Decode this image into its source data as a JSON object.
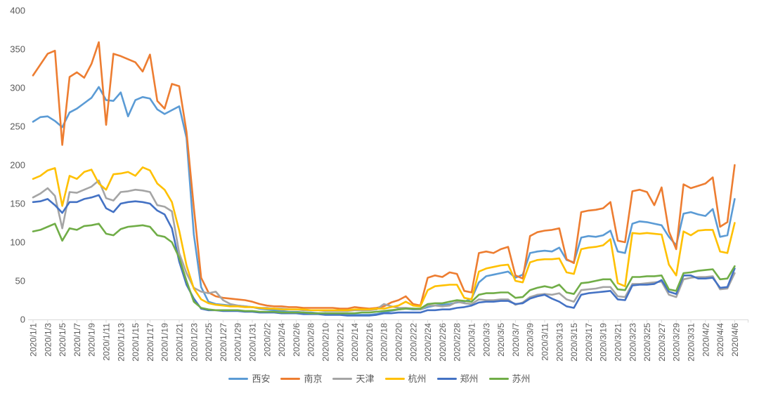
{
  "chart_data": {
    "type": "line",
    "title": "",
    "ylim": [
      0,
      400
    ],
    "y_ticks": [
      0,
      50,
      100,
      150,
      200,
      250,
      300,
      350,
      400
    ],
    "x_label_every": 2,
    "grid": false,
    "legend_position": "bottom",
    "dates": [
      "2020/1/1",
      "2020/1/2",
      "2020/1/3",
      "2020/1/4",
      "2020/1/5",
      "2020/1/6",
      "2020/1/7",
      "2020/1/8",
      "2020/1/9",
      "2020/1/10",
      "2020/1/11",
      "2020/1/12",
      "2020/1/13",
      "2020/1/14",
      "2020/1/15",
      "2020/1/16",
      "2020/1/17",
      "2020/1/18",
      "2020/1/19",
      "2020/1/20",
      "2020/1/21",
      "2020/1/22",
      "2020/1/23",
      "2020/1/24",
      "2020/1/25",
      "2020/1/26",
      "2020/1/27",
      "2020/1/28",
      "2020/1/29",
      "2020/1/30",
      "2020/1/31",
      "2020/2/1",
      "2020/2/2",
      "2020/2/3",
      "2020/2/4",
      "2020/2/5",
      "2020/2/6",
      "2020/2/7",
      "2020/2/8",
      "2020/2/9",
      "2020/2/10",
      "2020/2/11",
      "2020/2/12",
      "2020/2/13",
      "2020/2/14",
      "2020/2/15",
      "2020/2/16",
      "2020/2/17",
      "2020/2/18",
      "2020/2/19",
      "2020/2/20",
      "2020/2/21",
      "2020/2/22",
      "2020/2/23",
      "2020/2/24",
      "2020/2/25",
      "2020/2/26",
      "2020/2/27",
      "2020/2/28",
      "2020/2/29",
      "2020/3/1",
      "2020/3/2",
      "2020/3/3",
      "2020/3/4",
      "2020/3/5",
      "2020/3/6",
      "2020/3/7",
      "2020/3/8",
      "2020/3/9",
      "2020/3/10",
      "2020/3/11",
      "2020/3/12",
      "2020/3/13",
      "2020/3/14",
      "2020/3/15",
      "2020/3/16",
      "2020/3/17",
      "2020/3/18",
      "2020/3/19",
      "2020/3/20",
      "2020/3/21",
      "2020/3/22",
      "2020/3/23",
      "2020/3/24",
      "2020/3/25",
      "2020/3/26",
      "2020/3/27",
      "2020/3/28",
      "2020/3/29",
      "2020/3/30",
      "2020/3/31",
      "2020/4/1",
      "2020/4/2",
      "2020/4/3",
      "2020/4/4",
      "2020/4/5",
      "2020/4/6"
    ],
    "series": [
      {
        "id": "xian",
        "name": "西安",
        "color": "#5B9BD5",
        "values": [
          256,
          262,
          263,
          257,
          249,
          268,
          273,
          280,
          287,
          301,
          284,
          283,
          294,
          263,
          284,
          288,
          286,
          272,
          266,
          271,
          276,
          235,
          110,
          42,
          23,
          20,
          19,
          18,
          18,
          17,
          16,
          14,
          13,
          12,
          11,
          10,
          10,
          9,
          9,
          8,
          8,
          7,
          7,
          6,
          6,
          6,
          6,
          7,
          9,
          11,
          13,
          14,
          13,
          13,
          16,
          18,
          19,
          20,
          22,
          23,
          27,
          48,
          56,
          58,
          60,
          62,
          54,
          58,
          86,
          88,
          89,
          88,
          93,
          77,
          74,
          106,
          108,
          107,
          109,
          115,
          88,
          86,
          124,
          127,
          126,
          124,
          122,
          107,
          96,
          137,
          139,
          136,
          134,
          143,
          107,
          109,
          156
        ]
      },
      {
        "id": "nanjing",
        "name": "南京",
        "color": "#ED7D31",
        "values": [
          316,
          330,
          344,
          348,
          226,
          314,
          320,
          313,
          331,
          359,
          252,
          344,
          341,
          337,
          333,
          321,
          343,
          283,
          273,
          305,
          302,
          243,
          145,
          54,
          35,
          30,
          28,
          27,
          26,
          25,
          23,
          20,
          18,
          17,
          17,
          16,
          16,
          15,
          15,
          15,
          15,
          15,
          14,
          14,
          16,
          15,
          14,
          15,
          17,
          22,
          25,
          30,
          20,
          18,
          54,
          57,
          55,
          61,
          59,
          37,
          35,
          86,
          88,
          86,
          91,
          94,
          57,
          53,
          108,
          113,
          115,
          116,
          118,
          78,
          73,
          139,
          141,
          142,
          144,
          152,
          102,
          100,
          166,
          168,
          165,
          148,
          171,
          114,
          91,
          175,
          170,
          173,
          176,
          184,
          120,
          126,
          200
        ]
      },
      {
        "id": "tianjin",
        "name": "天津",
        "color": "#A5A5A5",
        "values": [
          158,
          163,
          170,
          160,
          118,
          165,
          164,
          168,
          172,
          180,
          157,
          154,
          165,
          166,
          168,
          167,
          165,
          148,
          146,
          140,
          86,
          60,
          41,
          36,
          34,
          36,
          25,
          20,
          18,
          17,
          16,
          15,
          15,
          14,
          14,
          13,
          13,
          12,
          12,
          12,
          11,
          11,
          11,
          11,
          12,
          12,
          12,
          13,
          20,
          17,
          15,
          15,
          14,
          13,
          18,
          18,
          17,
          18,
          23,
          21,
          20,
          26,
          25,
          25,
          26,
          26,
          19,
          22,
          29,
          32,
          33,
          32,
          34,
          26,
          23,
          38,
          39,
          40,
          42,
          42,
          30,
          29,
          46,
          46,
          47,
          48,
          49,
          32,
          29,
          52,
          54,
          55,
          55,
          56,
          39,
          40,
          60
        ]
      },
      {
        "id": "hangzhou",
        "name": "杭州",
        "color": "#FFC000",
        "values": [
          182,
          186,
          193,
          196,
          147,
          186,
          182,
          191,
          194,
          176,
          168,
          188,
          189,
          191,
          186,
          197,
          193,
          176,
          168,
          152,
          115,
          70,
          40,
          26,
          21,
          19,
          18,
          17,
          17,
          16,
          16,
          15,
          14,
          14,
          13,
          13,
          13,
          13,
          12,
          12,
          12,
          12,
          12,
          12,
          13,
          13,
          13,
          14,
          14,
          16,
          18,
          23,
          18,
          17,
          38,
          43,
          44,
          45,
          45,
          28,
          26,
          62,
          66,
          68,
          70,
          71,
          50,
          48,
          74,
          77,
          78,
          78,
          79,
          61,
          59,
          91,
          93,
          94,
          96,
          104,
          47,
          43,
          112,
          111,
          112,
          111,
          110,
          71,
          57,
          114,
          109,
          115,
          116,
          116,
          88,
          86,
          125
        ]
      },
      {
        "id": "zhengzhou",
        "name": "郑州",
        "color": "#4472C4",
        "values": [
          152,
          153,
          156,
          148,
          138,
          152,
          152,
          156,
          158,
          161,
          144,
          139,
          150,
          152,
          153,
          152,
          150,
          141,
          136,
          118,
          75,
          45,
          27,
          14,
          12,
          12,
          11,
          11,
          11,
          10,
          10,
          9,
          9,
          9,
          8,
          8,
          8,
          7,
          7,
          7,
          6,
          6,
          6,
          5,
          5,
          5,
          5,
          6,
          8,
          8,
          9,
          9,
          9,
          9,
          12,
          12,
          13,
          13,
          15,
          16,
          18,
          22,
          23,
          23,
          24,
          24,
          20,
          21,
          27,
          30,
          32,
          27,
          23,
          17,
          15,
          32,
          34,
          35,
          36,
          37,
          26,
          25,
          44,
          45,
          45,
          46,
          51,
          36,
          33,
          57,
          57,
          53,
          53,
          54,
          41,
          42,
          66
        ]
      },
      {
        "id": "suzhou",
        "name": "苏州",
        "color": "#70AD47",
        "values": [
          114,
          116,
          120,
          124,
          102,
          118,
          116,
          121,
          122,
          124,
          111,
          109,
          117,
          120,
          121,
          122,
          120,
          109,
          107,
          100,
          80,
          50,
          23,
          15,
          13,
          12,
          12,
          12,
          12,
          11,
          11,
          10,
          10,
          10,
          9,
          9,
          9,
          9,
          8,
          8,
          8,
          8,
          8,
          8,
          8,
          9,
          9,
          10,
          11,
          12,
          13,
          14,
          14,
          14,
          20,
          21,
          21,
          23,
          25,
          24,
          23,
          32,
          34,
          34,
          35,
          35,
          28,
          29,
          38,
          41,
          43,
          41,
          45,
          35,
          33,
          47,
          48,
          50,
          52,
          52,
          39,
          38,
          55,
          55,
          56,
          56,
          57,
          39,
          37,
          60,
          61,
          63,
          64,
          65,
          52,
          53,
          69
        ]
      }
    ]
  },
  "axis_style": {
    "label_color": "#595959",
    "line_color": "#D9D9D9"
  }
}
